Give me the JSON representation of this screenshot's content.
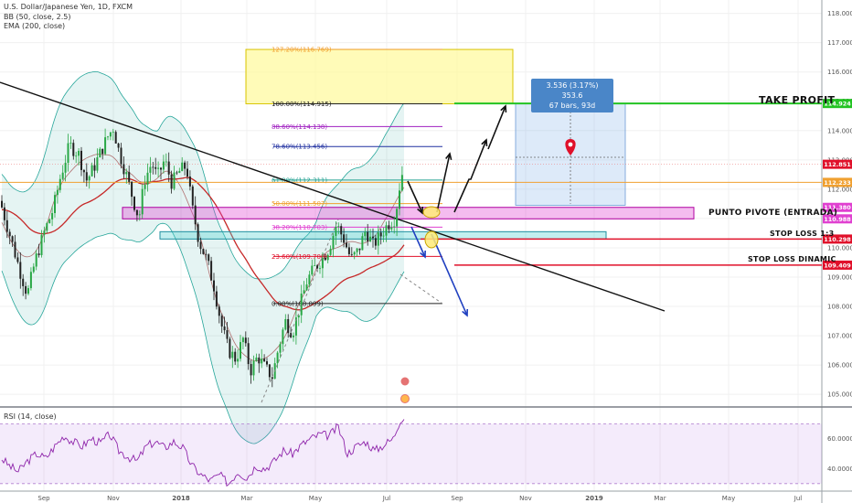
{
  "header": {
    "title": "U.S. Dollar/Japanese Yen, 1D, FXCM",
    "indicator_1": "BB (50, close, 2.5)",
    "indicator_2": "EMA (200, close)"
  },
  "rsi_label": "RSI (14, close)",
  "measure_box": {
    "line1": "3.536 (3.17%) 353.6",
    "line2": "67 bars, 93d"
  },
  "annotations": {
    "take_profit": "TAKE PROFIT",
    "pivot": "PUNTO PIVOTE (ENTRADA)",
    "stop_loss": "STOP LOSS 1:3",
    "stop_loss_dynamic": "STOP LOSS DINAMIC"
  },
  "chart_data": {
    "type": "candlestick",
    "price_axis": {
      "range": [
        104.6,
        118.3
      ],
      "ticks": [
        {
          "v": 118,
          "label": "118.000"
        },
        {
          "v": 117,
          "label": "117.000"
        },
        {
          "v": 116,
          "label": "116.000"
        },
        {
          "v": 115,
          "label": "115.000"
        },
        {
          "v": 114,
          "label": "114.000"
        },
        {
          "v": 113,
          "label": "113.000"
        },
        {
          "v": 112,
          "label": "112.000"
        },
        {
          "v": 111,
          "label": "111.000"
        },
        {
          "v": 110,
          "label": "110.000"
        },
        {
          "v": 109,
          "label": "109.000"
        },
        {
          "v": 108,
          "label": "108.000"
        },
        {
          "v": 107,
          "label": "107.000"
        },
        {
          "v": 106,
          "label": "106.000"
        },
        {
          "v": 105,
          "label": "105.000"
        }
      ]
    },
    "rsi_axis": {
      "range": [
        25,
        80
      ],
      "ticks": [
        {
          "v": 60,
          "label": "60.0000"
        },
        {
          "v": 40,
          "label": "40.0000"
        }
      ],
      "bands": [
        30,
        70
      ]
    },
    "time_axis": [
      "Sep",
      "Nov",
      "2018",
      "Mar",
      "May",
      "Jul",
      "Sep",
      "Nov",
      "2019",
      "Mar",
      "May",
      "Jul"
    ],
    "price_labels": [
      {
        "v": 114.924,
        "text": "114.924",
        "color": "#22c322"
      },
      {
        "v": 112.851,
        "text": "112.851",
        "color": "#e0102a"
      },
      {
        "v": 112.233,
        "text": "112.233",
        "color": "#f0a030"
      },
      {
        "v": 111.38,
        "text": "111.380",
        "color": "#e040d0"
      },
      {
        "v": 110.988,
        "text": "110.988",
        "color": "#e040d0"
      },
      {
        "v": 110.298,
        "text": "110.298",
        "color": "#e0102a"
      },
      {
        "v": 109.409,
        "text": "109.409",
        "color": "#e0102a"
      }
    ],
    "fibonacci": [
      {
        "level": "127.20%",
        "price": 116.769,
        "text": "127.20%(116.769)",
        "color": "#f0a030"
      },
      {
        "level": "100.00%",
        "price": 114.915,
        "text": "100.00%(114.915)",
        "color": "#222222"
      },
      {
        "level": "88.60%",
        "price": 114.138,
        "text": "88.60%(114.138)",
        "color": "#a020c0"
      },
      {
        "level": "78.60%",
        "price": 113.456,
        "text": "78.60%(113.456)",
        "color": "#2030a0"
      },
      {
        "level": "61.80%",
        "price": 112.311,
        "text": "61.80%(112.311)",
        "color": "#20a090"
      },
      {
        "level": "50.00%",
        "price": 111.507,
        "text": "50.00%(111.507)",
        "color": "#f0a030"
      },
      {
        "level": "38.20%",
        "price": 110.703,
        "text": "38.20%(110.703)",
        "color": "#e040d0"
      },
      {
        "level": "23.60%",
        "price": 109.708,
        "text": "23.60%(109.708)",
        "color": "#e0102a"
      },
      {
        "level": "0.00%",
        "price": 108.099,
        "text": "0.00%(108.099)",
        "color": "#222222"
      }
    ],
    "horizontal_levels": [
      {
        "name": "take-profit",
        "price": 114.924,
        "color": "#22c322"
      },
      {
        "name": "pivot",
        "price": 111.2,
        "color": "#e040d0"
      },
      {
        "name": "stop-loss",
        "price": 110.298,
        "color": "#e0102a"
      },
      {
        "name": "stop-loss-dynamic",
        "price": 109.409,
        "color": "#e0102a"
      }
    ],
    "trendline": {
      "from": [
        "2017-08-01",
        115.6
      ],
      "to": [
        "2019-02-20",
        108.4
      ]
    },
    "candles_anchor": {
      "start": "2017-07-20",
      "end": "2018-07-25"
    },
    "close_path": [
      [
        0,
        111.6
      ],
      [
        12,
        110.3
      ],
      [
        22,
        109.2
      ],
      [
        30,
        108.4
      ],
      [
        38,
        109.5
      ],
      [
        48,
        110.5
      ],
      [
        58,
        111.3
      ],
      [
        66,
        112.4
      ],
      [
        76,
        113.5
      ],
      [
        86,
        113.2
      ],
      [
        95,
        112.3
      ],
      [
        102,
        112.7
      ],
      [
        112,
        113.4
      ],
      [
        118,
        113.8
      ],
      [
        124,
        114.1
      ],
      [
        130,
        113.3
      ],
      [
        138,
        112.5
      ],
      [
        146,
        111.6
      ],
      [
        152,
        111.0
      ],
      [
        158,
        112.3
      ],
      [
        166,
        112.9
      ],
      [
        172,
        112.4
      ],
      [
        180,
        113.0
      ],
      [
        188,
        112.2
      ],
      [
        196,
        112.6
      ],
      [
        204,
        112.8
      ],
      [
        210,
        111.4
      ],
      [
        218,
        110.2
      ],
      [
        226,
        109.6
      ],
      [
        234,
        108.7
      ],
      [
        242,
        107.4
      ],
      [
        250,
        106.5
      ],
      [
        258,
        106.2
      ],
      [
        266,
        106.9
      ],
      [
        274,
        105.8
      ],
      [
        282,
        106.3
      ],
      [
        290,
        105.9
      ],
      [
        298,
        105.6
      ],
      [
        304,
        106.5
      ],
      [
        312,
        107.5
      ],
      [
        320,
        107.1
      ],
      [
        328,
        108.0
      ],
      [
        336,
        108.9
      ],
      [
        344,
        109.3
      ],
      [
        352,
        109.6
      ],
      [
        360,
        110.0
      ],
      [
        368,
        110.8
      ],
      [
        376,
        110.3
      ],
      [
        384,
        109.6
      ],
      [
        392,
        109.9
      ],
      [
        400,
        110.6
      ],
      [
        408,
        110.1
      ],
      [
        416,
        110.4
      ],
      [
        424,
        110.8
      ],
      [
        432,
        111.0
      ],
      [
        438,
        112.3
      ],
      [
        442,
        112.8
      ]
    ],
    "rsi_path": [
      [
        0,
        48
      ],
      [
        10,
        42
      ],
      [
        20,
        38
      ],
      [
        30,
        45
      ],
      [
        40,
        50
      ],
      [
        50,
        47
      ],
      [
        60,
        55
      ],
      [
        70,
        62
      ],
      [
        80,
        58
      ],
      [
        90,
        55
      ],
      [
        100,
        60
      ],
      [
        110,
        57
      ],
      [
        120,
        63
      ],
      [
        130,
        52
      ],
      [
        140,
        48
      ],
      [
        150,
        45
      ],
      [
        160,
        55
      ],
      [
        170,
        58
      ],
      [
        180,
        54
      ],
      [
        190,
        58
      ],
      [
        200,
        54
      ],
      [
        210,
        42
      ],
      [
        220,
        36
      ],
      [
        230,
        32
      ],
      [
        240,
        36
      ],
      [
        250,
        30
      ],
      [
        260,
        38
      ],
      [
        270,
        34
      ],
      [
        280,
        42
      ],
      [
        290,
        40
      ],
      [
        300,
        45
      ],
      [
        310,
        52
      ],
      [
        320,
        50
      ],
      [
        330,
        56
      ],
      [
        340,
        60
      ],
      [
        350,
        63
      ],
      [
        360,
        62
      ],
      [
        370,
        68
      ],
      [
        380,
        50
      ],
      [
        390,
        55
      ],
      [
        400,
        58
      ],
      [
        410,
        52
      ],
      [
        420,
        56
      ],
      [
        430,
        60
      ],
      [
        438,
        73
      ],
      [
        442,
        74
      ]
    ]
  },
  "colors": {
    "take_profit": "#22c322",
    "pivot_zone": "#e040d0",
    "stop_loss": "#e0102a",
    "bollinger": "#26a69a",
    "ema": "#c62828",
    "trendline": "#111111",
    "up_candle": "#28a745",
    "down_candle": "#222222",
    "rsi": "#8e24aa"
  }
}
